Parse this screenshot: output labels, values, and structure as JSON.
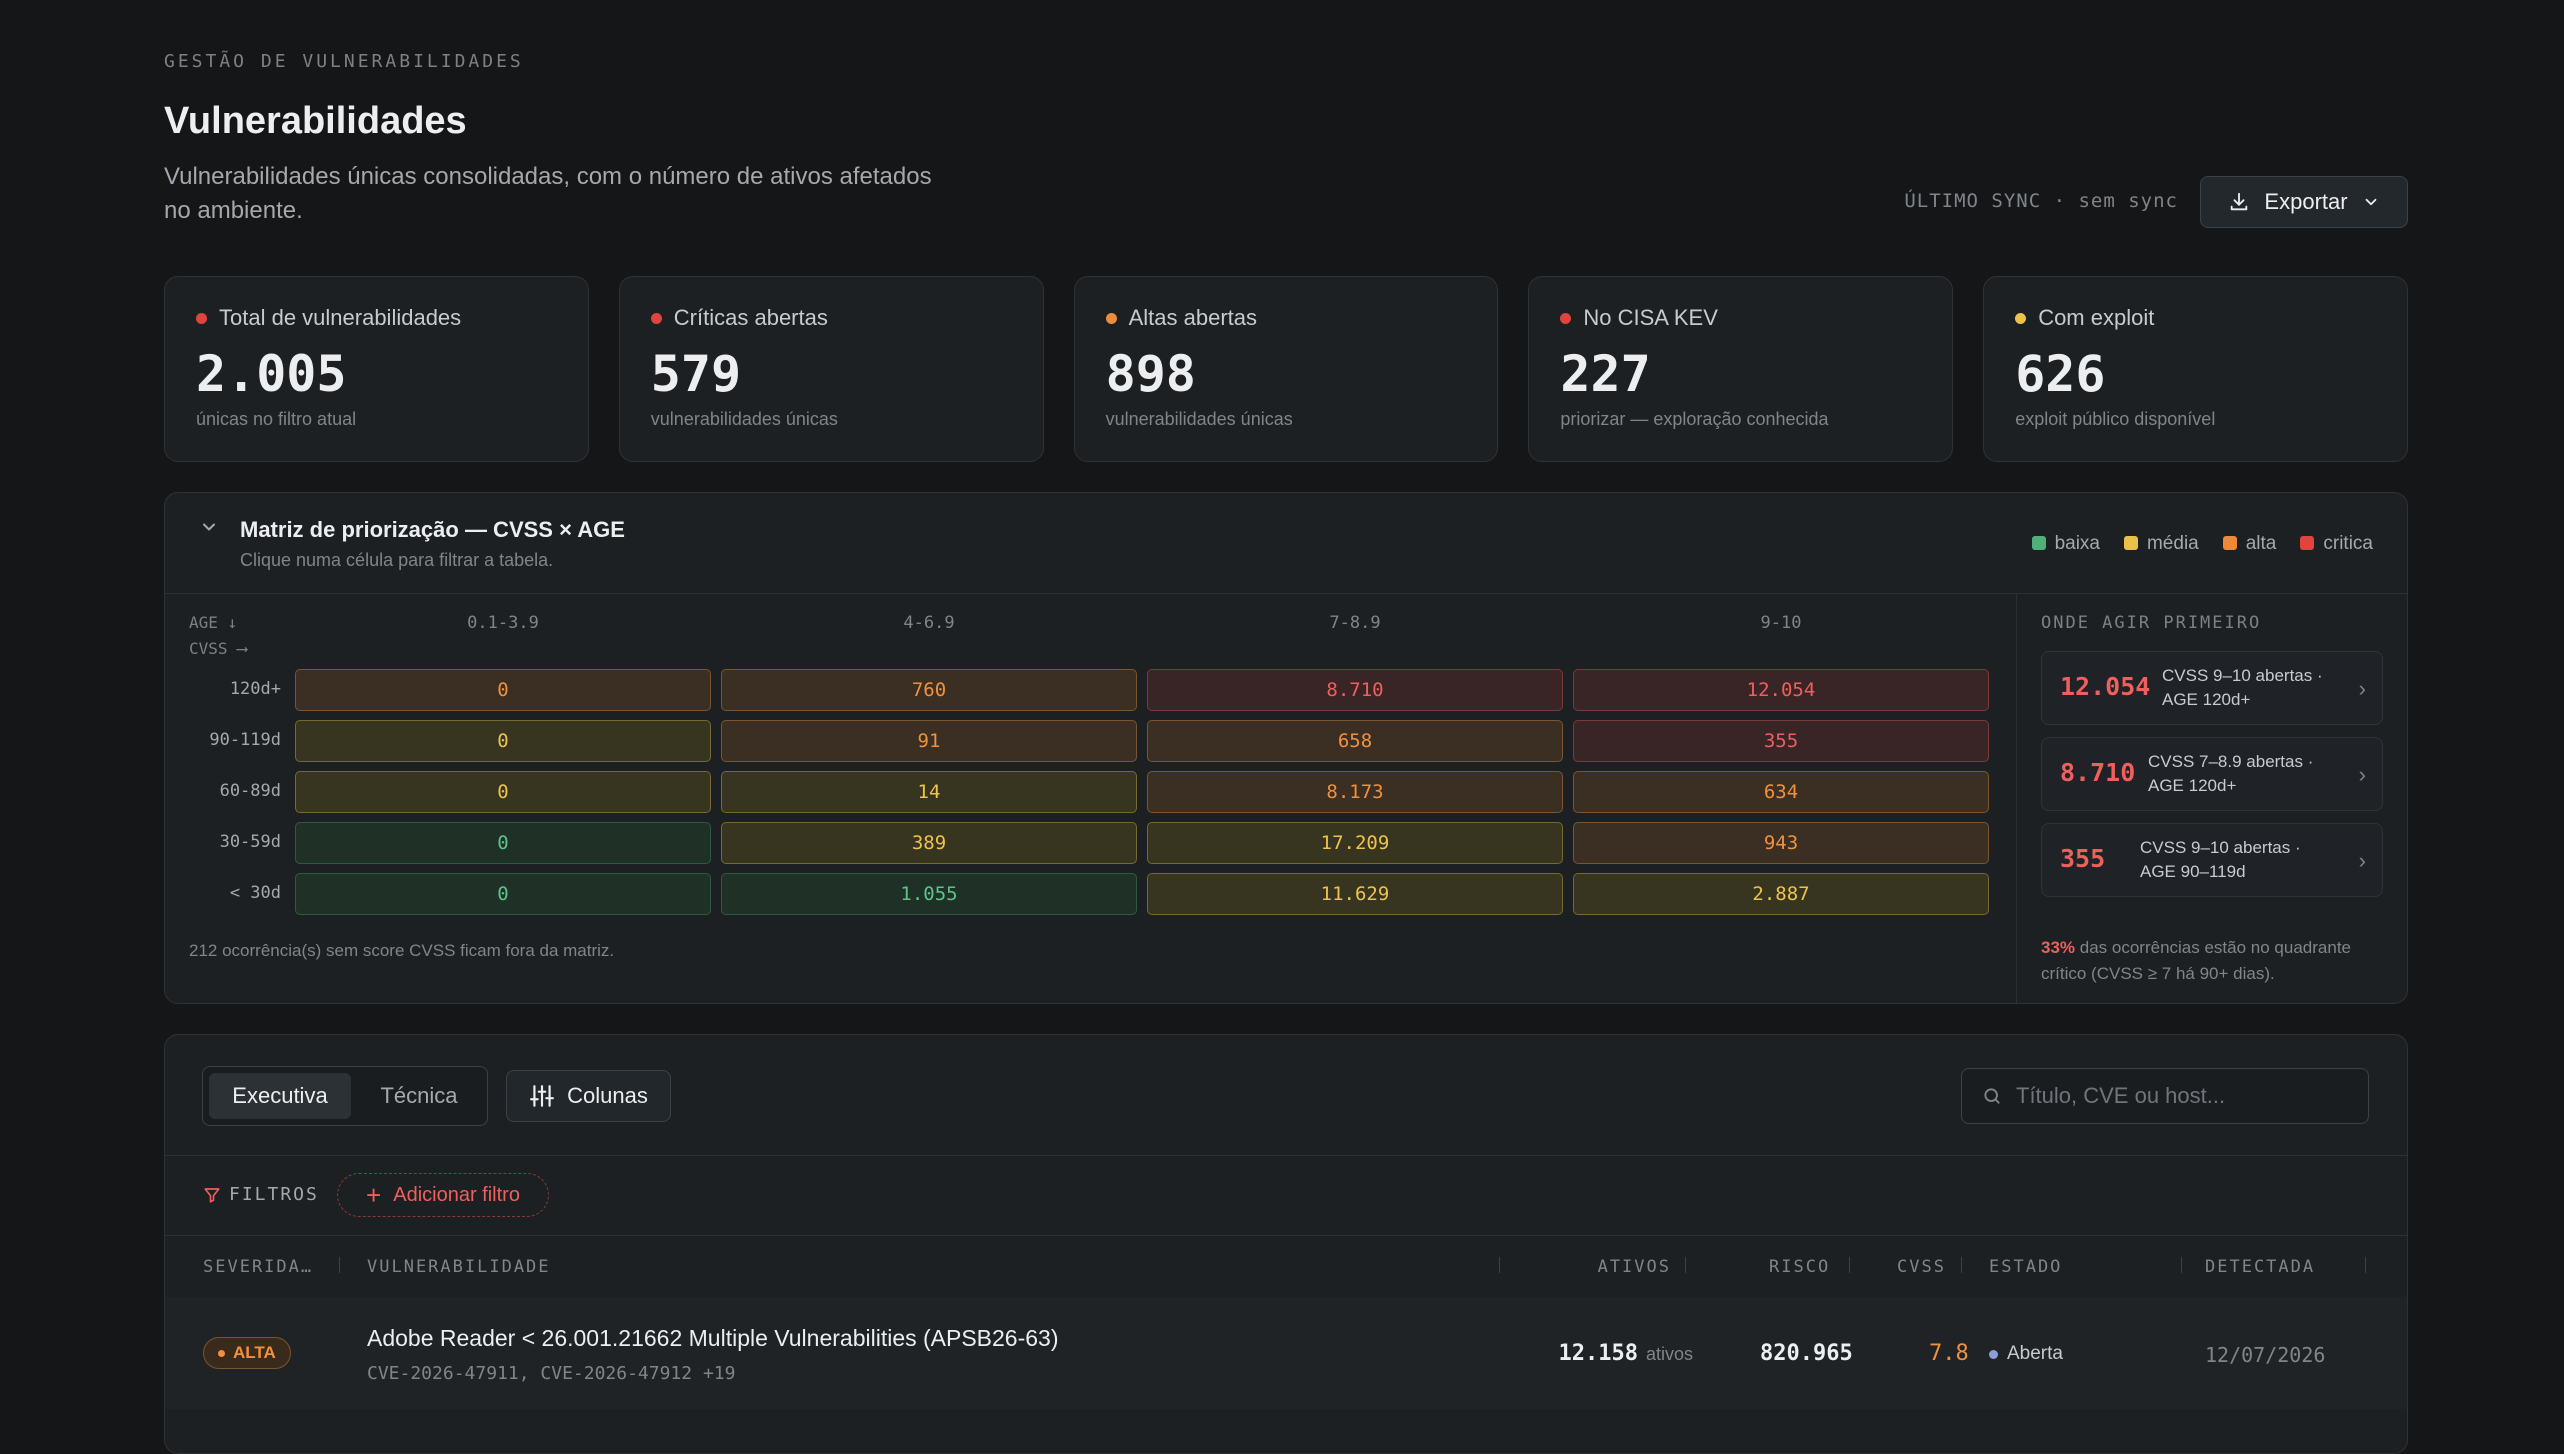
{
  "header": {
    "eyebrow": "GESTÃO DE VULNERABILIDADES",
    "title": "Vulnerabilidades",
    "subtitle": "Vulnerabilidades únicas consolidadas, com o número de ativos afetados no ambiente.",
    "sync": "ÚLTIMO SYNC · sem sync",
    "export_label": "Exportar"
  },
  "kpis": [
    {
      "label": "Total de vulnerabilidades",
      "value": "2.005",
      "sub": "únicas no filtro atual",
      "color": "#e0443e"
    },
    {
      "label": "Críticas abertas",
      "value": "579",
      "sub": "vulnerabilidades únicas",
      "color": "#e0443e"
    },
    {
      "label": "Altas abertas",
      "value": "898",
      "sub": "vulnerabilidades únicas",
      "color": "#ef8c3a"
    },
    {
      "label": "No CISA KEV",
      "value": "227",
      "sub": "priorizar — exploração conhecida",
      "color": "#e0443e"
    },
    {
      "label": "Com exploit",
      "value": "626",
      "sub": "exploit público disponível",
      "color": "#ecc24a"
    }
  ],
  "matrix": {
    "title": "Matriz de priorização — CVSS × AGE",
    "subtitle": "Clique numa célula para filtrar a tabela.",
    "legend": [
      {
        "label": "baixa",
        "color": "#4fb07a"
      },
      {
        "label": "média",
        "color": "#e9c14a"
      },
      {
        "label": "alta",
        "color": "#ea8a3a"
      },
      {
        "label": "critica",
        "color": "#e0443e"
      }
    ],
    "corner_age": "AGE ↓",
    "corner_cvss": "CVSS ⟶",
    "columns": [
      "0.1-3.9",
      "4-6.9",
      "7-8.9",
      "9-10"
    ],
    "rows": [
      {
        "label": "120d+",
        "cells": [
          {
            "v": "0",
            "t": "amber"
          },
          {
            "v": "760",
            "t": "amber"
          },
          {
            "v": "8.710",
            "t": "red"
          },
          {
            "v": "12.054",
            "t": "red"
          }
        ]
      },
      {
        "label": "90-119d",
        "cells": [
          {
            "v": "0",
            "t": "olive"
          },
          {
            "v": "91",
            "t": "amber"
          },
          {
            "v": "658",
            "t": "amber"
          },
          {
            "v": "355",
            "t": "red"
          }
        ]
      },
      {
        "label": "60-89d",
        "cells": [
          {
            "v": "0",
            "t": "olive"
          },
          {
            "v": "14",
            "t": "olive"
          },
          {
            "v": "8.173",
            "t": "amber"
          },
          {
            "v": "634",
            "t": "amber"
          }
        ]
      },
      {
        "label": "30-59d",
        "cells": [
          {
            "v": "0",
            "t": "green"
          },
          {
            "v": "389",
            "t": "olive"
          },
          {
            "v": "17.209",
            "t": "olive"
          },
          {
            "v": "943",
            "t": "amber"
          }
        ]
      },
      {
        "label": "< 30d",
        "cells": [
          {
            "v": "0",
            "t": "green"
          },
          {
            "v": "1.055",
            "t": "green"
          },
          {
            "v": "11.629",
            "t": "olive"
          },
          {
            "v": "2.887",
            "t": "olive"
          }
        ]
      }
    ],
    "footnote": "212 ocorrência(s) sem score CVSS ficam fora da matriz."
  },
  "actions": {
    "title": "ONDE AGIR PRIMEIRO",
    "items": [
      {
        "value": "12.054",
        "text": "CVSS 9–10 abertas · AGE 120d+"
      },
      {
        "value": "8.710",
        "text": "CVSS 7–8.9 abertas · AGE 120d+"
      },
      {
        "value": "355",
        "text": "CVSS 9–10 abertas · AGE 90–119d"
      }
    ],
    "note_pct": "33%",
    "note_text": " das ocorrências estão no quadrante crítico (CVSS ≥ 7 há 90+ dias)."
  },
  "table": {
    "tabs": [
      "Executiva",
      "Técnica"
    ],
    "columns_label": "Colunas",
    "search_placeholder": "Título, CVE ou host...",
    "filters_label": "FILTROS",
    "add_filter_label": "Adicionar filtro",
    "headers": {
      "severity": "SEVERIDA…",
      "vulnerability": "VULNERABILIDADE",
      "assets": "ATIVOS",
      "risk": "RISCO",
      "cvss": "CVSS",
      "state": "ESTADO",
      "detected": "DETECTADA"
    },
    "rows": [
      {
        "severity": "ALTA",
        "title": "Adobe Reader < 26.001.21662 Multiple Vulnerabilities (APSB26-63)",
        "cves": "CVE-2026-47911, CVE-2026-47912 +19",
        "assets": "12.158",
        "assets_unit": "ativos",
        "risk": "820.965",
        "cvss": "7.8",
        "state": "Aberta",
        "detected": "12/07/2026"
      }
    ]
  }
}
